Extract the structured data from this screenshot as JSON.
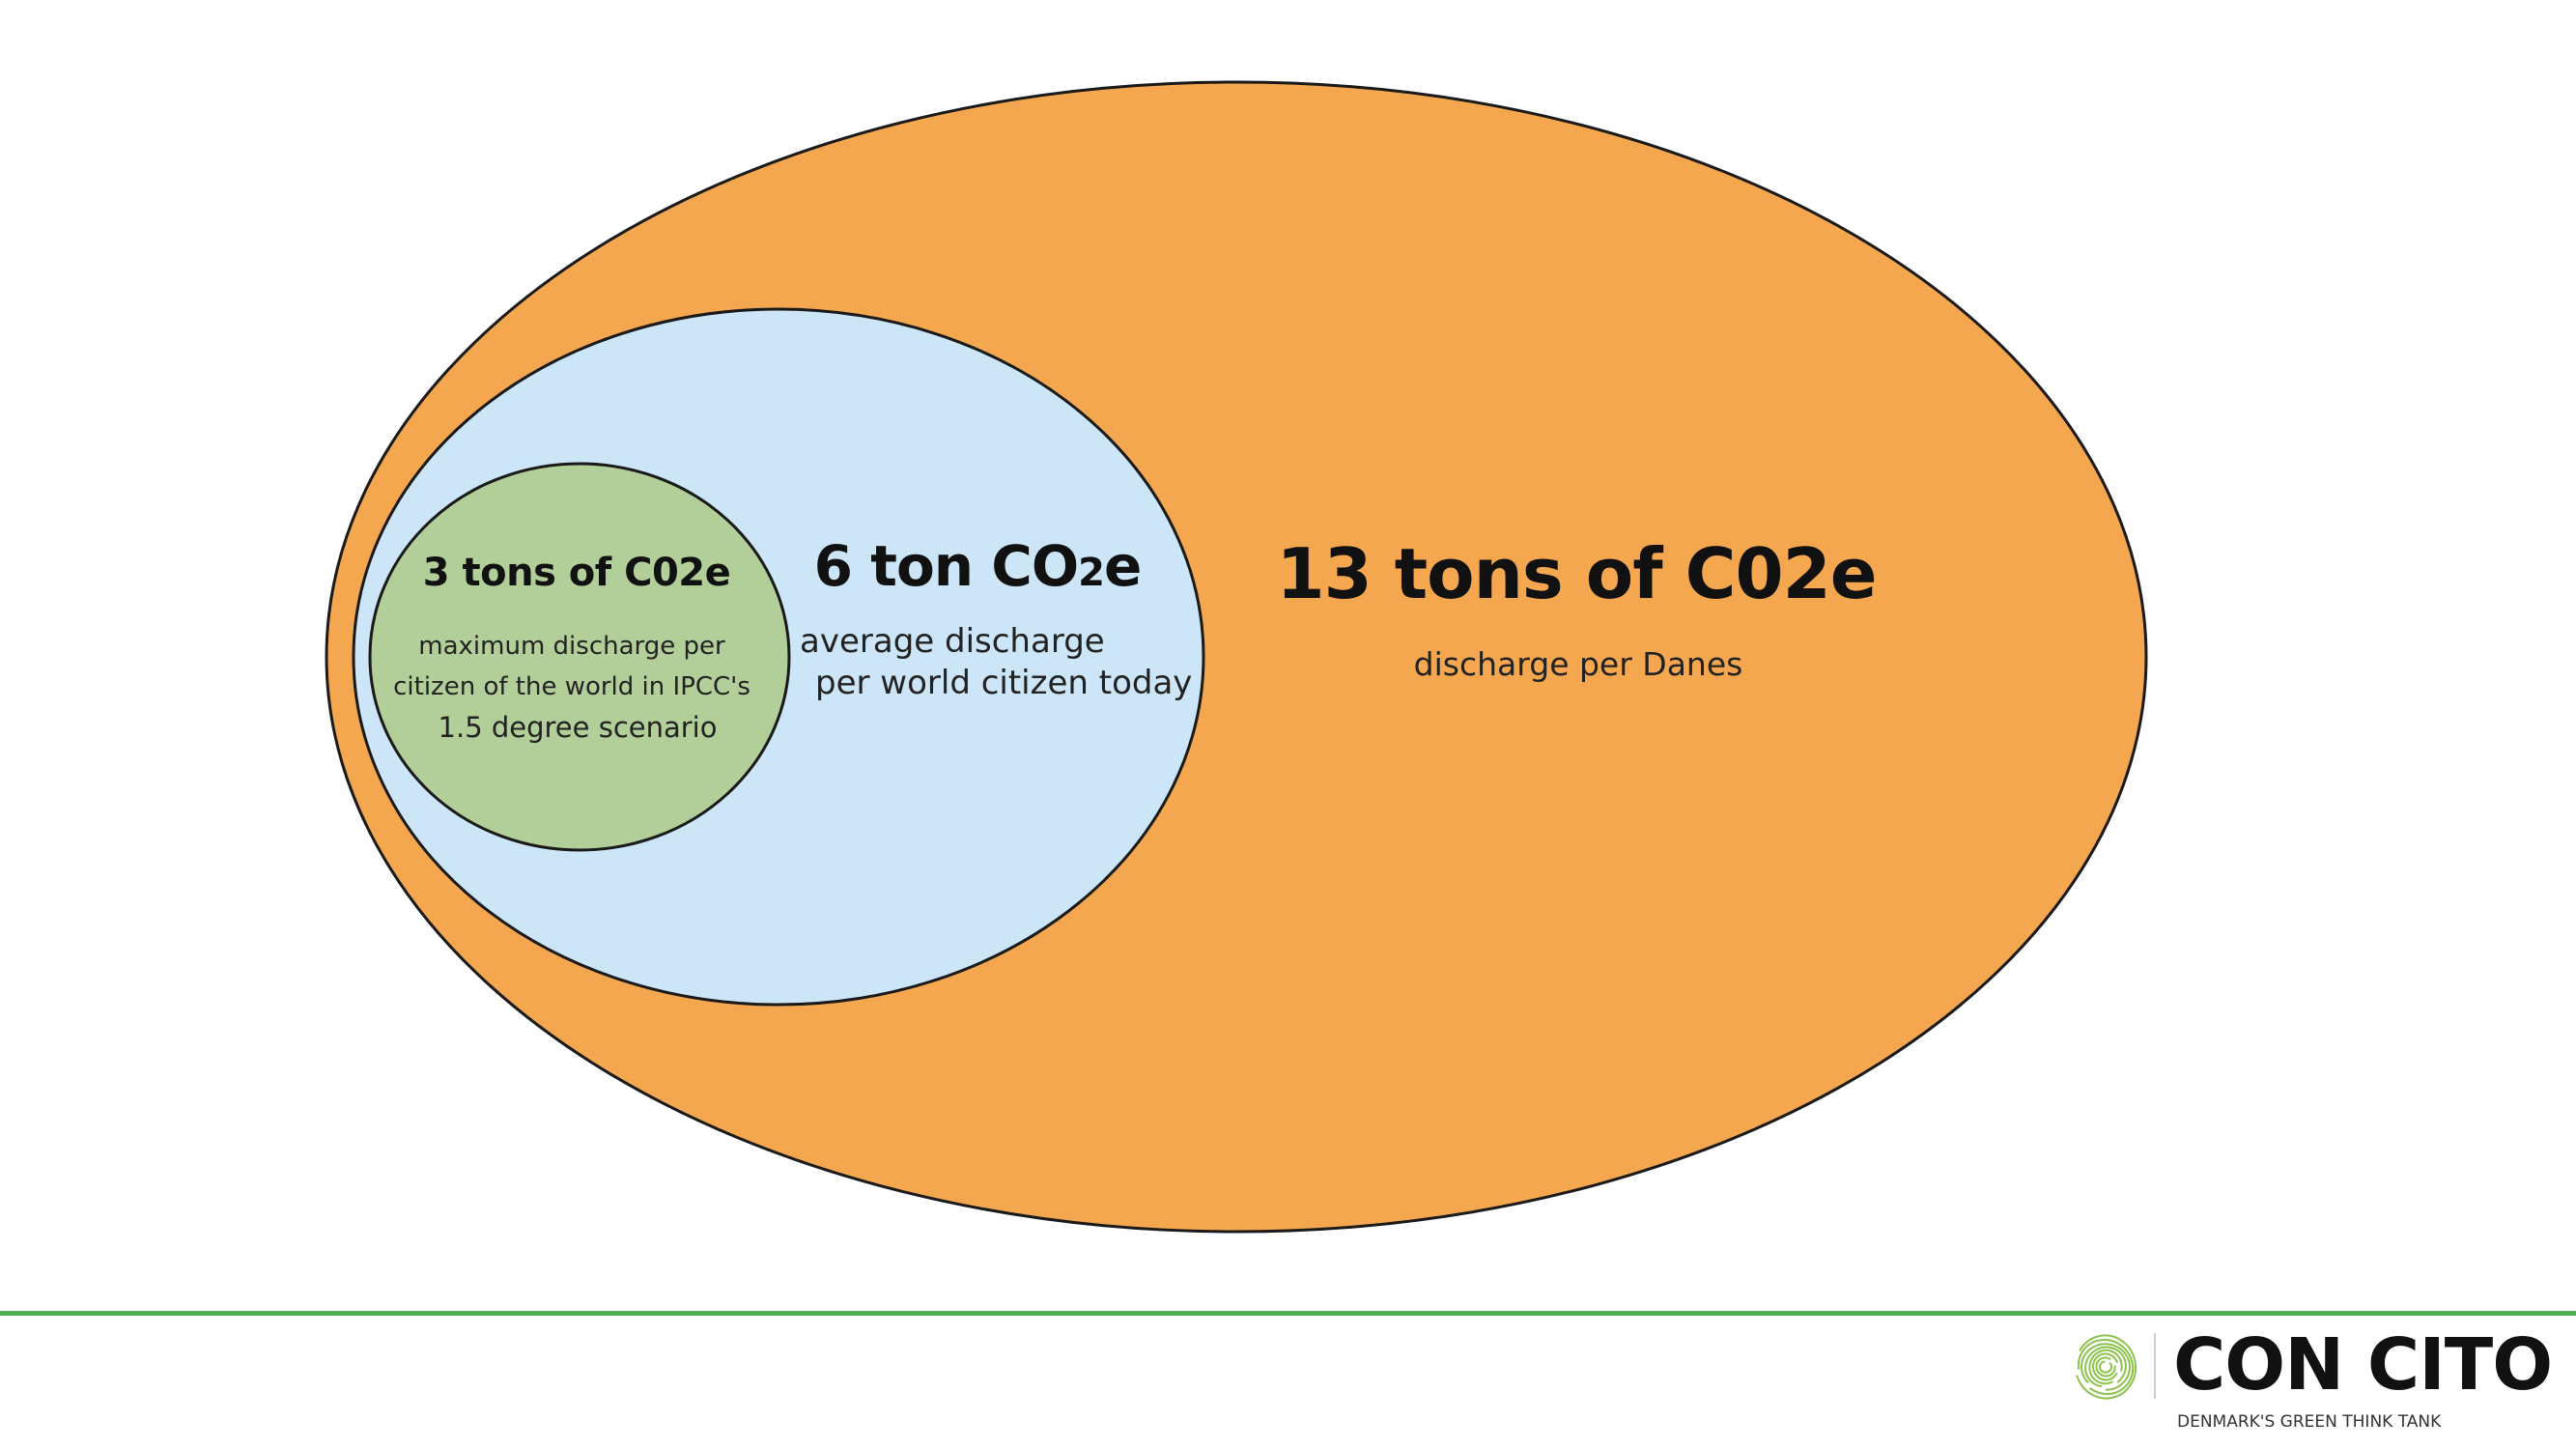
{
  "circles": [
    {
      "id": "danes",
      "title": "13 tons of C02e",
      "description": "discharge per Danes",
      "color": "#F5A74F"
    },
    {
      "id": "world",
      "title_main": "6 ton CO",
      "title_sub": "2",
      "title_end": "e",
      "description_lines": [
        "average discharge",
        "per world citizen today"
      ],
      "color": "#CCE6F7"
    },
    {
      "id": "ipcc",
      "title": "3 tons of C02e",
      "description_lines": [
        "maximum discharge per",
        "citizen of the world in IPCC's",
        "1.5 degree scenario"
      ],
      "color": "#B3CF99"
    }
  ],
  "footer": {
    "line_color": "#4CAF50",
    "logo_word": "CON CITO",
    "tagline": "DENMARK'S GREEN THINK TANK",
    "logo_icon": "fingerprint-leaf-icon",
    "logo_color": "#8BC34A"
  }
}
